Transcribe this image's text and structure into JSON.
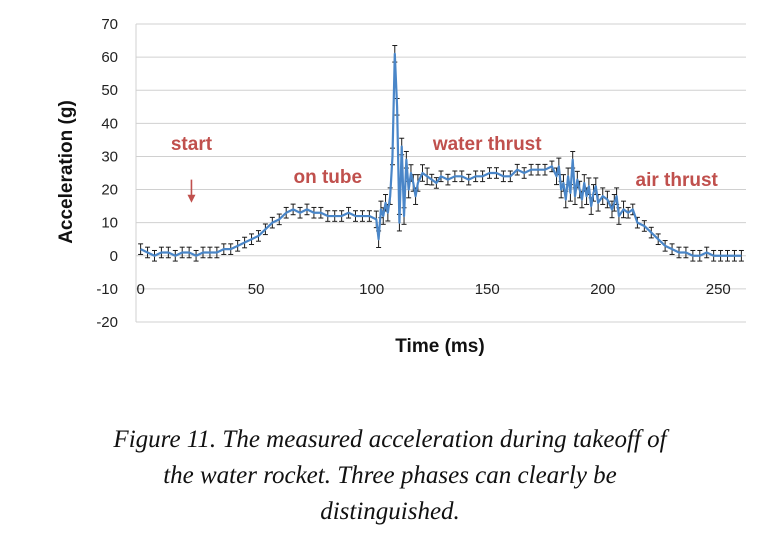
{
  "chart_data": {
    "type": "line",
    "xlabel": "Time (ms)",
    "ylabel": "Acceleration (g)",
    "xlim": [
      -2,
      262
    ],
    "ylim": [
      -20,
      70
    ],
    "xticks": [
      0,
      50,
      100,
      150,
      200,
      250
    ],
    "yticks": [
      -20,
      -10,
      0,
      10,
      20,
      30,
      40,
      50,
      60,
      70
    ],
    "grid": "horizontal",
    "error_bars": true,
    "series": [
      {
        "color": "#4a86c8",
        "x": [
          0,
          3,
          6,
          9,
          12,
          15,
          18,
          21,
          24,
          27,
          30,
          33,
          36,
          39,
          42,
          45,
          48,
          51,
          54,
          57,
          60,
          63,
          66,
          69,
          72,
          75,
          78,
          81,
          84,
          87,
          90,
          93,
          96,
          99,
          102,
          103,
          104,
          105,
          106,
          107,
          108,
          109,
          110,
          111,
          112,
          113,
          114,
          115,
          116,
          117,
          118,
          119,
          120,
          122,
          124,
          126,
          128,
          130,
          133,
          136,
          139,
          142,
          145,
          148,
          151,
          154,
          157,
          160,
          163,
          166,
          169,
          172,
          175,
          178,
          180,
          181,
          182,
          183,
          184,
          185,
          186,
          187,
          188,
          189,
          190,
          191,
          192,
          193,
          194,
          195,
          196,
          197,
          198,
          200,
          202,
          204,
          205,
          206,
          207,
          209,
          211,
          213,
          215,
          218,
          221,
          224,
          227,
          230,
          233,
          236,
          239,
          242,
          245,
          248,
          251,
          254,
          257,
          260
        ],
        "y": [
          2,
          1,
          0,
          1,
          1,
          0,
          1,
          1,
          0,
          1,
          1,
          1,
          2,
          2,
          3,
          4,
          5,
          6,
          8,
          10,
          11,
          13,
          14,
          13,
          14,
          13,
          13,
          12,
          12,
          12,
          13,
          12,
          12,
          12,
          11,
          5,
          14,
          12,
          16,
          13,
          18,
          30,
          61,
          45,
          10,
          33,
          12,
          29,
          20,
          25,
          22,
          18,
          22,
          25,
          24,
          23,
          22,
          24,
          23,
          24,
          24,
          23,
          24,
          24,
          25,
          25,
          24,
          24,
          26,
          25,
          26,
          26,
          26,
          27,
          24,
          27,
          20,
          22,
          17,
          24,
          19,
          29,
          18,
          23,
          20,
          17,
          22,
          18,
          21,
          15,
          19,
          21,
          16,
          18,
          17,
          14,
          16,
          18,
          12,
          14,
          13,
          14,
          10,
          9,
          7,
          5,
          3,
          2,
          1,
          1,
          0,
          0,
          1,
          0,
          0,
          0,
          0,
          0
        ]
      }
    ],
    "annotations": [
      {
        "text": "start",
        "x": 22,
        "y": 32,
        "arrow_from": 23,
        "arrow_to": 16
      },
      {
        "text": "on tube",
        "x": 81,
        "y": 22
      },
      {
        "text": "water thrust",
        "x": 150,
        "y": 32
      },
      {
        "text": "air thrust",
        "x": 232,
        "y": 21
      }
    ]
  },
  "caption": {
    "line1": "Figure 11. The measured acceleration during takeoff of",
    "line2": "the water rocket. Three phases can clearly be",
    "line3": "distinguished."
  },
  "colors": {
    "annotation": "#c0504d",
    "series": "#4a86c8",
    "gridline": "#d0d0d0",
    "errorbar": "#1a1a1a"
  }
}
